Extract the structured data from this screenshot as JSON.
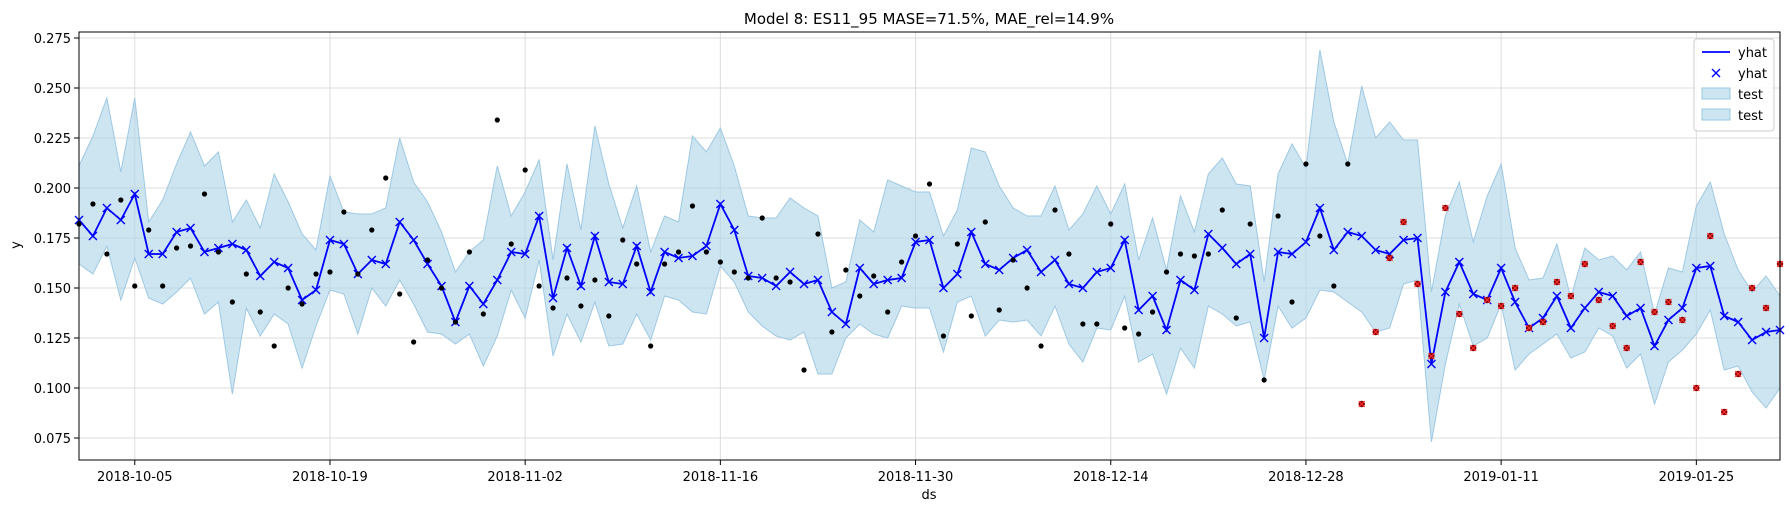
{
  "chart_data": {
    "type": "line",
    "title": "Model 8: ES11_95 MASE=71.5%, MAE_rel=14.9%",
    "xlabel": "ds",
    "ylabel": "y",
    "x_start": "2018-10-01",
    "xlim": [
      "2018-10-01",
      "2019-01-31"
    ],
    "ylim": [
      0.064,
      0.278
    ],
    "x_ticks": [
      {
        "date": "2018-10-05",
        "label": "2018-10-05"
      },
      {
        "date": "2018-10-19",
        "label": "2018-10-19"
      },
      {
        "date": "2018-11-02",
        "label": "2018-11-02"
      },
      {
        "date": "2018-11-16",
        "label": "2018-11-16"
      },
      {
        "date": "2018-11-30",
        "label": "2018-11-30"
      },
      {
        "date": "2018-12-14",
        "label": "2018-12-14"
      },
      {
        "date": "2018-12-28",
        "label": "2018-12-28"
      },
      {
        "date": "2019-01-11",
        "label": "2019-01-11"
      },
      {
        "date": "2019-01-25",
        "label": "2019-01-25"
      }
    ],
    "y_ticks": [
      {
        "value": 0.075,
        "label": "0.075"
      },
      {
        "value": 0.1,
        "label": "0.100"
      },
      {
        "value": 0.125,
        "label": "0.125"
      },
      {
        "value": 0.15,
        "label": "0.150"
      },
      {
        "value": 0.175,
        "label": "0.175"
      },
      {
        "value": 0.2,
        "label": "0.200"
      },
      {
        "value": 0.225,
        "label": "0.225"
      },
      {
        "value": 0.25,
        "label": "0.250"
      },
      {
        "value": 0.275,
        "label": "0.275"
      }
    ],
    "grid": true,
    "legend_position": "top-right",
    "legend": [
      {
        "label": "yhat",
        "kind": "line"
      },
      {
        "label": "yhat",
        "kind": "marker"
      },
      {
        "label": "test",
        "kind": "band"
      },
      {
        "label": "test",
        "kind": "band"
      }
    ],
    "colors": {
      "yhat": "#0000ff",
      "band_fill": "#aed3e8",
      "band_edge": "#9ec9e2",
      "actual": "#000000",
      "test_point": "#8b0000",
      "grid": "#dcdcdc"
    },
    "yhat": [
      0.184,
      0.176,
      0.19,
      0.184,
      0.197,
      0.167,
      0.167,
      0.178,
      0.18,
      0.168,
      0.17,
      0.172,
      0.169,
      0.156,
      0.163,
      0.16,
      0.144,
      0.149,
      0.174,
      0.172,
      0.157,
      0.164,
      0.162,
      0.183,
      0.174,
      0.162,
      0.151,
      0.133,
      0.151,
      0.142,
      0.154,
      0.168,
      0.167,
      0.186,
      0.145,
      0.17,
      0.151,
      0.176,
      0.153,
      0.152,
      0.171,
      0.148,
      0.168,
      0.165,
      0.166,
      0.171,
      0.192,
      0.179,
      0.156,
      0.155,
      0.151,
      0.158,
      0.152,
      0.154,
      0.138,
      0.132,
      0.16,
      0.152,
      0.154,
      0.155,
      0.173,
      0.174,
      0.15,
      0.157,
      0.178,
      0.162,
      0.159,
      0.165,
      0.169,
      0.158,
      0.164,
      0.152,
      0.15,
      0.158,
      0.16,
      0.174,
      0.139,
      0.146,
      0.129,
      0.154,
      0.149,
      0.177,
      0.17,
      0.162,
      0.167,
      0.125,
      0.168,
      0.167,
      0.173,
      0.19,
      0.169,
      0.178,
      0.176,
      0.169,
      0.167,
      0.174,
      0.175,
      0.112,
      0.148,
      0.163,
      0.147,
      0.144,
      0.16,
      0.143,
      0.13,
      0.135,
      0.146,
      0.13,
      0.14,
      0.148,
      0.146,
      0.136,
      0.14,
      0.121,
      0.134,
      0.14,
      0.16,
      0.161,
      0.136,
      0.133,
      0.124,
      0.128,
      0.129
    ],
    "band_upper": [
      0.211,
      0.226,
      0.245,
      0.208,
      0.245,
      0.183,
      0.194,
      0.212,
      0.228,
      0.211,
      0.218,
      0.183,
      0.194,
      0.18,
      0.207,
      0.193,
      0.177,
      0.169,
      0.206,
      0.188,
      0.187,
      0.187,
      0.19,
      0.225,
      0.203,
      0.193,
      0.178,
      0.158,
      0.168,
      0.174,
      0.211,
      0.186,
      0.198,
      0.214,
      0.164,
      0.212,
      0.179,
      0.231,
      0.202,
      0.18,
      0.201,
      0.168,
      0.186,
      0.183,
      0.226,
      0.218,
      0.23,
      0.211,
      0.186,
      0.185,
      0.185,
      0.195,
      0.19,
      0.186,
      0.15,
      0.153,
      0.184,
      0.178,
      0.204,
      0.201,
      0.198,
      0.198,
      0.176,
      0.189,
      0.22,
      0.218,
      0.201,
      0.19,
      0.186,
      0.186,
      0.201,
      0.179,
      0.187,
      0.201,
      0.187,
      0.202,
      0.164,
      0.185,
      0.159,
      0.196,
      0.178,
      0.207,
      0.215,
      0.202,
      0.201,
      0.153,
      0.207,
      0.222,
      0.21,
      0.269,
      0.233,
      0.212,
      0.251,
      0.225,
      0.233,
      0.224,
      0.224,
      0.148,
      0.186,
      0.203,
      0.173,
      0.196,
      0.212,
      0.17,
      0.154,
      0.155,
      0.172,
      0.145,
      0.17,
      0.164,
      0.166,
      0.159,
      0.168,
      0.137,
      0.16,
      0.158,
      0.191,
      0.203,
      0.177,
      0.159,
      0.148,
      0.156,
      0.146
    ],
    "band_lower": [
      0.162,
      0.157,
      0.171,
      0.144,
      0.165,
      0.145,
      0.142,
      0.148,
      0.155,
      0.137,
      0.143,
      0.097,
      0.14,
      0.126,
      0.137,
      0.132,
      0.11,
      0.131,
      0.149,
      0.147,
      0.127,
      0.15,
      0.141,
      0.154,
      0.142,
      0.128,
      0.127,
      0.122,
      0.127,
      0.111,
      0.126,
      0.149,
      0.135,
      0.164,
      0.116,
      0.137,
      0.123,
      0.143,
      0.121,
      0.122,
      0.137,
      0.124,
      0.146,
      0.144,
      0.138,
      0.137,
      0.161,
      0.153,
      0.138,
      0.131,
      0.126,
      0.124,
      0.128,
      0.107,
      0.107,
      0.125,
      0.132,
      0.127,
      0.125,
      0.141,
      0.14,
      0.14,
      0.118,
      0.143,
      0.146,
      0.126,
      0.134,
      0.133,
      0.134,
      0.126,
      0.141,
      0.122,
      0.113,
      0.13,
      0.129,
      0.146,
      0.113,
      0.117,
      0.097,
      0.12,
      0.11,
      0.141,
      0.137,
      0.131,
      0.133,
      0.104,
      0.141,
      0.13,
      0.135,
      0.149,
      0.148,
      0.143,
      0.138,
      0.128,
      0.13,
      0.152,
      0.154,
      0.073,
      0.112,
      0.142,
      0.121,
      0.125,
      0.142,
      0.109,
      0.117,
      0.122,
      0.127,
      0.115,
      0.118,
      0.13,
      0.126,
      0.11,
      0.117,
      0.092,
      0.113,
      0.119,
      0.127,
      0.139,
      0.109,
      0.111,
      0.098,
      0.09,
      0.1
    ],
    "actual_points": [
      {
        "i": 0,
        "y": 0.182
      },
      {
        "i": 1,
        "y": 0.192
      },
      {
        "i": 2,
        "y": 0.167
      },
      {
        "i": 3,
        "y": 0.194
      },
      {
        "i": 4,
        "y": 0.151
      },
      {
        "i": 5,
        "y": 0.179
      },
      {
        "i": 6,
        "y": 0.151
      },
      {
        "i": 7,
        "y": 0.17
      },
      {
        "i": 8,
        "y": 0.171
      },
      {
        "i": 9,
        "y": 0.197
      },
      {
        "i": 10,
        "y": 0.168
      },
      {
        "i": 11,
        "y": 0.143
      },
      {
        "i": 12,
        "y": 0.157
      },
      {
        "i": 13,
        "y": 0.138
      },
      {
        "i": 14,
        "y": 0.121
      },
      {
        "i": 15,
        "y": 0.15
      },
      {
        "i": 16,
        "y": 0.142
      },
      {
        "i": 17,
        "y": 0.157
      },
      {
        "i": 18,
        "y": 0.158
      },
      {
        "i": 19,
        "y": 0.188
      },
      {
        "i": 20,
        "y": 0.157
      },
      {
        "i": 21,
        "y": 0.179
      },
      {
        "i": 22,
        "y": 0.205
      },
      {
        "i": 23,
        "y": 0.147
      },
      {
        "i": 24,
        "y": 0.123
      },
      {
        "i": 25,
        "y": 0.164
      },
      {
        "i": 26,
        "y": 0.15
      },
      {
        "i": 27,
        "y": 0.133
      },
      {
        "i": 28,
        "y": 0.168
      },
      {
        "i": 29,
        "y": 0.137
      },
      {
        "i": 30,
        "y": 0.234
      },
      {
        "i": 31,
        "y": 0.172
      },
      {
        "i": 32,
        "y": 0.209
      },
      {
        "i": 33,
        "y": 0.151
      },
      {
        "i": 34,
        "y": 0.14
      },
      {
        "i": 35,
        "y": 0.155
      },
      {
        "i": 36,
        "y": 0.141
      },
      {
        "i": 37,
        "y": 0.154
      },
      {
        "i": 38,
        "y": 0.136
      },
      {
        "i": 39,
        "y": 0.174
      },
      {
        "i": 40,
        "y": 0.162
      },
      {
        "i": 41,
        "y": 0.121
      },
      {
        "i": 42,
        "y": 0.162
      },
      {
        "i": 43,
        "y": 0.168
      },
      {
        "i": 44,
        "y": 0.191
      },
      {
        "i": 45,
        "y": 0.168
      },
      {
        "i": 46,
        "y": 0.163
      },
      {
        "i": 47,
        "y": 0.158
      },
      {
        "i": 48,
        "y": 0.155
      },
      {
        "i": 49,
        "y": 0.185
      },
      {
        "i": 50,
        "y": 0.155
      },
      {
        "i": 51,
        "y": 0.153
      },
      {
        "i": 52,
        "y": 0.109
      },
      {
        "i": 53,
        "y": 0.177
      },
      {
        "i": 54,
        "y": 0.128
      },
      {
        "i": 55,
        "y": 0.159
      },
      {
        "i": 56,
        "y": 0.146
      },
      {
        "i": 57,
        "y": 0.156
      },
      {
        "i": 58,
        "y": 0.138
      },
      {
        "i": 59,
        "y": 0.163
      },
      {
        "i": 60,
        "y": 0.176
      },
      {
        "i": 61,
        "y": 0.202
      },
      {
        "i": 62,
        "y": 0.126
      },
      {
        "i": 63,
        "y": 0.172
      },
      {
        "i": 64,
        "y": 0.136
      },
      {
        "i": 65,
        "y": 0.183
      },
      {
        "i": 66,
        "y": 0.139
      },
      {
        "i": 67,
        "y": 0.164
      },
      {
        "i": 68,
        "y": 0.15
      },
      {
        "i": 69,
        "y": 0.121
      },
      {
        "i": 70,
        "y": 0.189
      },
      {
        "i": 71,
        "y": 0.167
      },
      {
        "i": 72,
        "y": 0.132
      },
      {
        "i": 73,
        "y": 0.132
      },
      {
        "i": 74,
        "y": 0.182
      },
      {
        "i": 75,
        "y": 0.13
      },
      {
        "i": 76,
        "y": 0.127
      },
      {
        "i": 77,
        "y": 0.138
      },
      {
        "i": 78,
        "y": 0.158
      },
      {
        "i": 79,
        "y": 0.167
      },
      {
        "i": 80,
        "y": 0.166
      },
      {
        "i": 81,
        "y": 0.167
      },
      {
        "i": 82,
        "y": 0.189
      },
      {
        "i": 83,
        "y": 0.135
      },
      {
        "i": 84,
        "y": 0.182
      },
      {
        "i": 85,
        "y": 0.104
      },
      {
        "i": 86,
        "y": 0.186
      },
      {
        "i": 87,
        "y": 0.143
      },
      {
        "i": 88,
        "y": 0.212
      },
      {
        "i": 89,
        "y": 0.176
      },
      {
        "i": 90,
        "y": 0.151
      },
      {
        "i": 91,
        "y": 0.212
      }
    ],
    "test_points": [
      {
        "i": 92,
        "y": 0.092
      },
      {
        "i": 93,
        "y": 0.128
      },
      {
        "i": 94,
        "y": 0.165
      },
      {
        "i": 95,
        "y": 0.183
      },
      {
        "i": 96,
        "y": 0.152
      },
      {
        "i": 97,
        "y": 0.116
      },
      {
        "i": 98,
        "y": 0.19
      },
      {
        "i": 99,
        "y": 0.137
      },
      {
        "i": 100,
        "y": 0.12
      },
      {
        "i": 101,
        "y": 0.144
      },
      {
        "i": 102,
        "y": 0.141
      },
      {
        "i": 103,
        "y": 0.15
      },
      {
        "i": 104,
        "y": 0.13
      },
      {
        "i": 105,
        "y": 0.133
      },
      {
        "i": 106,
        "y": 0.153
      },
      {
        "i": 107,
        "y": 0.146
      },
      {
        "i": 108,
        "y": 0.162
      },
      {
        "i": 109,
        "y": 0.144
      },
      {
        "i": 110,
        "y": 0.131
      },
      {
        "i": 111,
        "y": 0.12
      },
      {
        "i": 112,
        "y": 0.163
      },
      {
        "i": 113,
        "y": 0.138
      },
      {
        "i": 114,
        "y": 0.143
      },
      {
        "i": 115,
        "y": 0.134
      },
      {
        "i": 116,
        "y": 0.1
      },
      {
        "i": 117,
        "y": 0.176
      },
      {
        "i": 118,
        "y": 0.088
      },
      {
        "i": 119,
        "y": 0.107
      },
      {
        "i": 120,
        "y": 0.15
      },
      {
        "i": 121,
        "y": 0.14
      },
      {
        "i": 122,
        "y": 0.162
      }
    ]
  }
}
